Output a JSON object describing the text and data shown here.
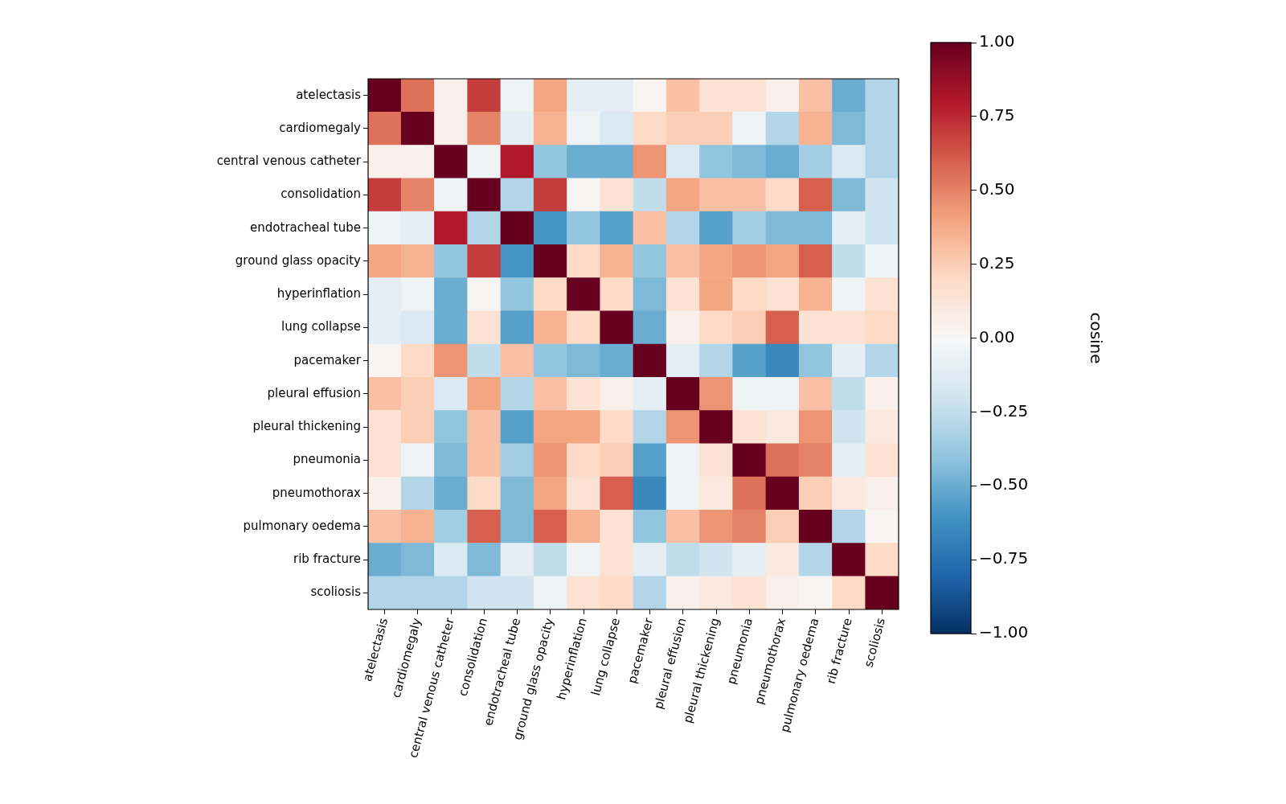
{
  "chart_data": {
    "type": "heatmap",
    "clabel": "cosine",
    "categories": [
      "atelectasis",
      "cardiomegaly",
      "central venous catheter",
      "consolidation",
      "endotracheal tube",
      "ground glass opacity",
      "hyperinflation",
      "lung collapse",
      "pacemaker",
      "pleural effusion",
      "pleural thickening",
      "pneumonia",
      "pneumothorax",
      "pulmonary oedema",
      "rib fracture",
      "scoliosis"
    ],
    "y_categories": [
      "atelectasis",
      "cardiomegaly",
      "central venous catheter",
      "consolidation",
      "endotracheal tube",
      "ground glass opacity",
      "hyperinflation",
      "lung collapse",
      "pacemaker",
      "pleural effusion",
      "pleural thickening",
      "pneumonia",
      "pneumothorax",
      "pulmonary oedema",
      "rib fracture",
      "scoliosis"
    ],
    "cells": [
      [
        1,
        0.55,
        0.05,
        0.7,
        -0.05,
        0.4,
        -0.1,
        -0.1,
        0.02,
        0.3,
        0.15,
        0.15,
        0.05,
        0.3,
        -0.5,
        -0.3
      ],
      [
        0.55,
        1,
        0.05,
        0.5,
        -0.1,
        0.35,
        -0.05,
        -0.15,
        0.2,
        0.25,
        0.25,
        -0.05,
        -0.3,
        0.35,
        -0.45,
        -0.3
      ],
      [
        0.05,
        0.05,
        1,
        -0.05,
        0.8,
        -0.4,
        -0.5,
        -0.5,
        0.45,
        -0.15,
        -0.4,
        -0.45,
        -0.5,
        -0.35,
        -0.15,
        -0.3
      ],
      [
        0.7,
        0.5,
        -0.05,
        1,
        -0.3,
        0.7,
        0.02,
        0.15,
        -0.25,
        0.4,
        0.3,
        0.3,
        0.2,
        0.6,
        -0.45,
        -0.2
      ],
      [
        -0.05,
        -0.1,
        0.8,
        -0.3,
        1,
        -0.6,
        -0.4,
        -0.55,
        0.3,
        -0.3,
        -0.55,
        -0.35,
        -0.45,
        -0.45,
        -0.1,
        -0.2
      ],
      [
        0.4,
        0.35,
        -0.4,
        0.7,
        -0.6,
        1,
        0.2,
        0.35,
        -0.4,
        0.3,
        0.4,
        0.45,
        0.4,
        0.6,
        -0.25,
        -0.05
      ],
      [
        -0.1,
        -0.05,
        -0.5,
        0.02,
        -0.4,
        0.2,
        1,
        0.2,
        -0.45,
        0.15,
        0.4,
        0.2,
        0.15,
        0.35,
        -0.05,
        0.15
      ],
      [
        -0.1,
        -0.15,
        -0.5,
        0.15,
        -0.55,
        0.35,
        0.2,
        1,
        -0.5,
        0.05,
        0.2,
        0.25,
        0.6,
        0.15,
        0.15,
        0.2
      ],
      [
        0.02,
        0.2,
        0.45,
        -0.25,
        0.3,
        -0.4,
        -0.45,
        -0.5,
        1,
        -0.1,
        -0.3,
        -0.55,
        -0.65,
        -0.4,
        -0.1,
        -0.3
      ],
      [
        0.3,
        0.25,
        -0.15,
        0.4,
        -0.3,
        0.3,
        0.15,
        0.05,
        -0.1,
        1,
        0.45,
        -0.05,
        -0.05,
        0.3,
        -0.25,
        0.05
      ],
      [
        0.15,
        0.25,
        -0.4,
        0.3,
        -0.55,
        0.4,
        0.4,
        0.2,
        -0.3,
        0.45,
        1,
        0.15,
        0.1,
        0.45,
        -0.2,
        0.1
      ],
      [
        0.15,
        -0.05,
        -0.45,
        0.3,
        -0.35,
        0.45,
        0.2,
        0.25,
        -0.55,
        -0.05,
        0.15,
        1,
        0.55,
        0.5,
        -0.1,
        0.15
      ],
      [
        0.05,
        -0.3,
        -0.5,
        0.2,
        -0.45,
        0.4,
        0.15,
        0.6,
        -0.65,
        -0.05,
        0.1,
        0.55,
        1,
        0.25,
        0.1,
        0.05
      ],
      [
        0.3,
        0.35,
        -0.35,
        0.6,
        -0.45,
        0.6,
        0.35,
        0.15,
        -0.4,
        0.3,
        0.45,
        0.5,
        0.25,
        1,
        -0.3,
        0.02
      ],
      [
        -0.5,
        -0.45,
        -0.15,
        -0.45,
        -0.1,
        -0.25,
        -0.05,
        0.15,
        -0.1,
        -0.25,
        -0.2,
        -0.1,
        0.1,
        -0.3,
        1,
        0.2
      ],
      [
        -0.3,
        -0.3,
        -0.3,
        -0.2,
        -0.2,
        -0.05,
        0.15,
        0.2,
        -0.3,
        0.05,
        0.1,
        0.15,
        0.05,
        0.02,
        0.2,
        1
      ]
    ],
    "clim": [
      -1,
      1
    ],
    "cticks": [
      {
        "value": -1,
        "label": "−1.00"
      },
      {
        "value": -0.75,
        "label": "−0.75"
      },
      {
        "value": -0.5,
        "label": "−0.50"
      },
      {
        "value": -0.25,
        "label": "−0.25"
      },
      {
        "value": 0,
        "label": "0.00"
      },
      {
        "value": 0.25,
        "label": "0.25"
      },
      {
        "value": 0.5,
        "label": "0.50"
      },
      {
        "value": 0.75,
        "label": "0.75"
      },
      {
        "value": 1,
        "label": "1.00"
      }
    ]
  }
}
